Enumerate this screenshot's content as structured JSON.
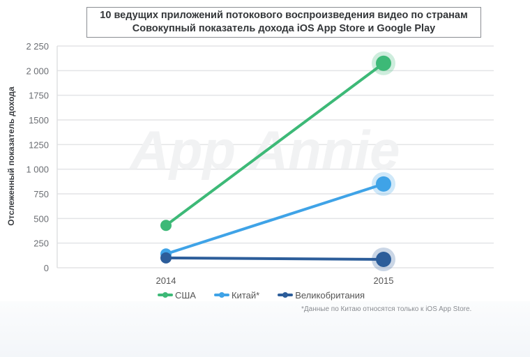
{
  "title": {
    "line1": "10 ведущих приложений потокового воспроизведения видео по странам",
    "line2": "Совокупный показатель дохода iOS App Store и Google Play"
  },
  "watermark": "App Annie",
  "footnote": "*Данные по Китаю относятся только к iOS App Store.",
  "colors": {
    "usa": "#3db977",
    "china": "#3fa3e7",
    "uk": "#2c5d9a",
    "grid": "#e3e4e6"
  },
  "legend": [
    {
      "label": "США",
      "color": "#3db977"
    },
    {
      "label": "Китай*",
      "color": "#3fa3e7"
    },
    {
      "label": "Великобритания",
      "color": "#2c5d9a"
    }
  ],
  "chart_data": {
    "type": "line",
    "title": "10 ведущих приложений потокового воспроизведения видео по странам — Совокупный показатель дохода iOS App Store и Google Play",
    "xlabel": "",
    "ylabel": "Отслеженный показатель дохода",
    "categories": [
      "2014",
      "2015"
    ],
    "yticks": [
      "0",
      "250",
      "500",
      "750",
      "1 000",
      "1250",
      "1500",
      "1750",
      "2 000",
      "2 250"
    ],
    "ylim": [
      0,
      2250
    ],
    "grid": true,
    "legend_position": "bottom",
    "series": [
      {
        "name": "США",
        "values": [
          430,
          2075
        ],
        "color": "#3db977"
      },
      {
        "name": "Китай*",
        "values": [
          140,
          850
        ],
        "color": "#3fa3e7"
      },
      {
        "name": "Великобритания",
        "values": [
          100,
          85
        ],
        "color": "#2c5d9a"
      }
    ]
  }
}
